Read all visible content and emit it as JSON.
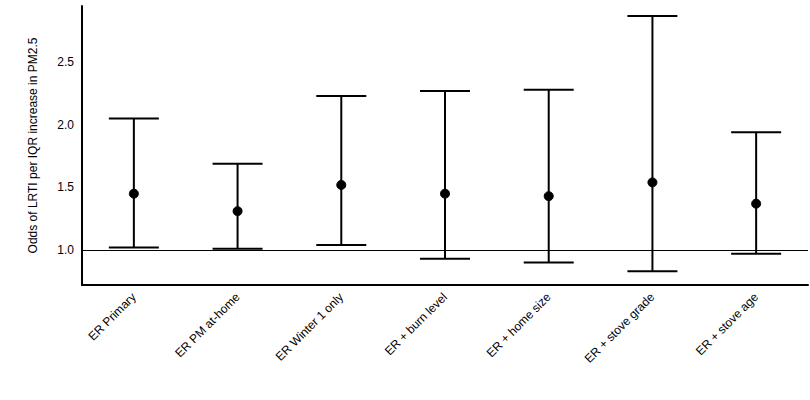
{
  "chart_data": {
    "type": "errorbar",
    "y_label": "Odds of LRTI per IQR increase in PM2.5",
    "categories": [
      "ER Primary",
      "ER PM at-home",
      "ER Winter 1 only",
      "ER + burn level",
      "ER + home size",
      "ER + stove grade",
      "ER + stove age"
    ],
    "values": [
      1.45,
      1.31,
      1.52,
      1.45,
      1.43,
      1.54,
      1.37
    ],
    "ci_lower": [
      1.02,
      1.01,
      1.04,
      0.93,
      0.9,
      0.83,
      0.97
    ],
    "ci_upper": [
      2.05,
      1.69,
      2.23,
      2.27,
      2.28,
      2.87,
      1.94
    ],
    "color": "#000000",
    "ylim": [
      0.72,
      2.95
    ],
    "yticks": [
      {
        "value": 1,
        "label": "1.0"
      },
      {
        "value": 1.5,
        "label": "1.5"
      },
      {
        "value": 2,
        "label": "2.0"
      },
      {
        "value": 2.5,
        "label": "2.5"
      }
    ],
    "reference_line": 1,
    "grid": false
  }
}
